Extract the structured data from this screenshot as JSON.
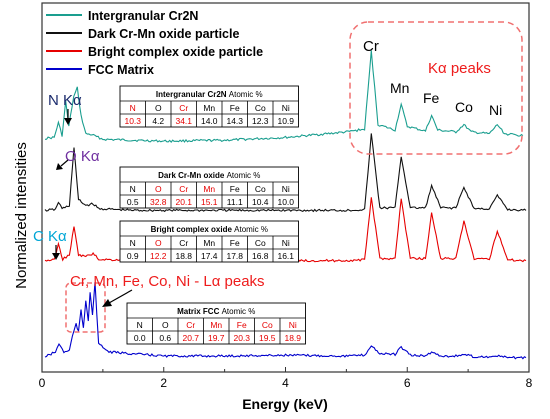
{
  "chart_data": {
    "type": "line",
    "title": "",
    "xlabel": "Energy (keV)",
    "ylabel": "Normalized intensities",
    "xlim": [
      0,
      8
    ],
    "xticks": [
      "0",
      "2",
      "4",
      "6",
      "8"
    ],
    "legend_position": "top-left",
    "series": [
      {
        "name": "Intergranular Cr2N",
        "color": "#1a9e8f",
        "points": [
          [
            0.05,
            0.05
          ],
          [
            0.2,
            0.06
          ],
          [
            0.27,
            0.22
          ],
          [
            0.33,
            0.08
          ],
          [
            0.39,
            0.45
          ],
          [
            0.44,
            0.18
          ],
          [
            0.52,
            0.5
          ],
          [
            0.58,
            0.6
          ],
          [
            0.64,
            0.3
          ],
          [
            0.72,
            0.1
          ],
          [
            0.82,
            0.09
          ],
          [
            1.0,
            0.04
          ],
          [
            2.0,
            0.02
          ],
          [
            3.0,
            0.03
          ],
          [
            4.0,
            0.06
          ],
          [
            5.0,
            0.12
          ],
          [
            5.3,
            0.15
          ],
          [
            5.41,
            1.0
          ],
          [
            5.52,
            0.2
          ],
          [
            5.8,
            0.14
          ],
          [
            5.9,
            0.42
          ],
          [
            6.0,
            0.18
          ],
          [
            6.3,
            0.13
          ],
          [
            6.4,
            0.3
          ],
          [
            6.5,
            0.14
          ],
          [
            6.8,
            0.12
          ],
          [
            6.93,
            0.2
          ],
          [
            7.05,
            0.12
          ],
          [
            7.35,
            0.1
          ],
          [
            7.48,
            0.2
          ],
          [
            7.6,
            0.1
          ],
          [
            7.9,
            0.08
          ]
        ]
      },
      {
        "name": "Dark Cr-Mn oxide particle",
        "color": "#111111",
        "points": [
          [
            0.05,
            0.02
          ],
          [
            0.22,
            0.03
          ],
          [
            0.27,
            0.12
          ],
          [
            0.33,
            0.04
          ],
          [
            0.45,
            0.08
          ],
          [
            0.525,
            0.78
          ],
          [
            0.6,
            0.15
          ],
          [
            0.72,
            0.08
          ],
          [
            0.84,
            0.1
          ],
          [
            0.93,
            0.04
          ],
          [
            1.5,
            0.02
          ],
          [
            3.0,
            0.02
          ],
          [
            5.0,
            0.02
          ],
          [
            5.3,
            0.03
          ],
          [
            5.41,
            0.95
          ],
          [
            5.55,
            0.05
          ],
          [
            5.8,
            0.05
          ],
          [
            5.9,
            0.68
          ],
          [
            6.05,
            0.05
          ],
          [
            6.3,
            0.05
          ],
          [
            6.4,
            0.32
          ],
          [
            6.55,
            0.05
          ],
          [
            6.8,
            0.05
          ],
          [
            6.93,
            0.3
          ],
          [
            7.1,
            0.04
          ],
          [
            7.35,
            0.04
          ],
          [
            7.48,
            0.2
          ],
          [
            7.65,
            0.03
          ],
          [
            7.95,
            0.02
          ]
        ]
      },
      {
        "name": "Bright complex oxide particle",
        "color": "#e60000",
        "points": [
          [
            0.05,
            0.02
          ],
          [
            0.2,
            0.03
          ],
          [
            0.27,
            0.25
          ],
          [
            0.34,
            0.04
          ],
          [
            0.45,
            0.1
          ],
          [
            0.525,
            0.5
          ],
          [
            0.6,
            0.1
          ],
          [
            0.72,
            0.08
          ],
          [
            0.84,
            0.12
          ],
          [
            0.93,
            0.04
          ],
          [
            1.5,
            0.02
          ],
          [
            3.0,
            0.02
          ],
          [
            5.0,
            0.02
          ],
          [
            5.3,
            0.03
          ],
          [
            5.41,
            0.92
          ],
          [
            5.55,
            0.05
          ],
          [
            5.8,
            0.05
          ],
          [
            5.9,
            0.9
          ],
          [
            6.05,
            0.05
          ],
          [
            6.3,
            0.05
          ],
          [
            6.4,
            0.7
          ],
          [
            6.55,
            0.05
          ],
          [
            6.8,
            0.05
          ],
          [
            6.93,
            0.58
          ],
          [
            7.1,
            0.04
          ],
          [
            7.35,
            0.04
          ],
          [
            7.48,
            0.45
          ],
          [
            7.65,
            0.03
          ],
          [
            7.95,
            0.02
          ]
        ]
      },
      {
        "name": "FCC Matrix",
        "color": "#0000cc",
        "points": [
          [
            0.05,
            0.04
          ],
          [
            0.22,
            0.1
          ],
          [
            0.28,
            0.2
          ],
          [
            0.36,
            0.1
          ],
          [
            0.45,
            0.12
          ],
          [
            0.5,
            0.3
          ],
          [
            0.56,
            0.45
          ],
          [
            0.6,
            0.35
          ],
          [
            0.64,
            0.62
          ],
          [
            0.68,
            0.4
          ],
          [
            0.72,
            0.75
          ],
          [
            0.76,
            0.5
          ],
          [
            0.79,
            0.85
          ],
          [
            0.83,
            0.55
          ],
          [
            0.87,
            0.97
          ],
          [
            0.93,
            0.2
          ],
          [
            1.1,
            0.1
          ],
          [
            2.0,
            0.05
          ],
          [
            3.0,
            0.05
          ],
          [
            4.0,
            0.06
          ],
          [
            5.0,
            0.05
          ],
          [
            5.3,
            0.06
          ],
          [
            5.41,
            0.18
          ],
          [
            5.55,
            0.08
          ],
          [
            5.8,
            0.07
          ],
          [
            5.9,
            0.16
          ],
          [
            6.05,
            0.06
          ],
          [
            6.3,
            0.05
          ],
          [
            6.4,
            0.1
          ],
          [
            6.55,
            0.05
          ],
          [
            6.8,
            0.05
          ],
          [
            6.93,
            0.07
          ],
          [
            7.1,
            0.04
          ],
          [
            7.35,
            0.04
          ],
          [
            7.48,
            0.05
          ],
          [
            7.65,
            0.03
          ],
          [
            7.95,
            0.03
          ]
        ]
      }
    ],
    "peak_labels": {
      "Cr": "Cr",
      "Mn": "Mn",
      "Fe": "Fe",
      "Co": "Co",
      "Ni": "Ni",
      "ka_peaks": "Kα peaks",
      "n_ka": "N Kα",
      "o_ka": "O Kα",
      "c_ka": "C Kα",
      "la_peaks": "Cr, Mn, Fe, Co, Ni -  Lα peaks"
    },
    "tables": [
      {
        "title": "Intergranular Cr2N",
        "title_suffix": "Atomic %",
        "headers": [
          "N",
          "O",
          "Cr",
          "Mn",
          "Fe",
          "Co",
          "Ni"
        ],
        "values": [
          "10.3",
          "4.2",
          "34.1",
          "14.0",
          "14.3",
          "12.3",
          "10.9"
        ],
        "highlight": [
          0,
          2
        ]
      },
      {
        "title": "Dark Cr-Mn oxide",
        "title_suffix": "Atomic %",
        "headers": [
          "N",
          "O",
          "Cr",
          "Mn",
          "Fe",
          "Co",
          "Ni"
        ],
        "values": [
          "0.5",
          "32.8",
          "20.1",
          "15.1",
          "11.1",
          "10.4",
          "10.0"
        ],
        "highlight": [
          1,
          2,
          3
        ]
      },
      {
        "title": "Bright complex oxide",
        "title_suffix": "Atomic %",
        "headers": [
          "N",
          "O",
          "Cr",
          "Mn",
          "Fe",
          "Co",
          "Ni"
        ],
        "values": [
          "0.9",
          "12.2",
          "18.8",
          "17.4",
          "17.8",
          "16.8",
          "16.1"
        ],
        "highlight": [
          1
        ]
      },
      {
        "title": "Matrix FCC",
        "title_suffix": "Atomic %",
        "headers": [
          "N",
          "O",
          "Cr",
          "Mn",
          "Fe",
          "Co",
          "Ni"
        ],
        "values": [
          "0.0",
          "0.6",
          "20.7",
          "19.7",
          "20.3",
          "19.5",
          "18.9"
        ],
        "highlight": [
          2,
          3,
          4,
          5,
          6
        ]
      }
    ]
  }
}
